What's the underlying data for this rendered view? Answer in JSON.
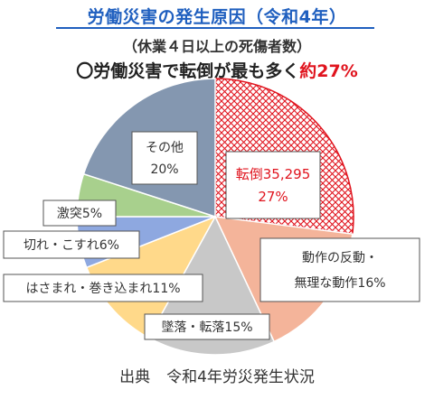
{
  "title": "労働災害の発生原因（令和4年）",
  "subtitle": "（休業４日以上の死傷者数）",
  "headline": {
    "prefix": "〇労働災害で転倒が最も多く",
    "highlight": "約27%"
  },
  "source": {
    "label": "出典",
    "text": "令和4年労災発生状況"
  },
  "colors": {
    "tentou": "#e0141e",
    "dousa": "#f4b49a",
    "tsuiraku": "#c8c8c8",
    "hasamare": "#ffd98a",
    "kire": "#8ea8e0",
    "gekitotsu": "#a8d08d",
    "sonota": "#8497b0"
  },
  "chart_data": {
    "type": "pie",
    "start_angle": "12 o'clock, clockwise",
    "slices": [
      {
        "name": "転倒",
        "value": 27,
        "label": "転倒35,295",
        "pct_label": "27%",
        "count": 35295,
        "color": "#e0141e",
        "pattern": "crosshatch"
      },
      {
        "name": "動作の反動・無理な動作",
        "value": 16,
        "label": "動作の反動・",
        "label2": "無理な動作16%",
        "color": "#f4b49a"
      },
      {
        "name": "墜落・転落",
        "value": 15,
        "label": "墜落・転落15%",
        "color": "#c8c8c8"
      },
      {
        "name": "はさまれ・巻き込まれ",
        "value": 11,
        "label": "はさまれ・巻き込まれ11%",
        "color": "#ffd98a"
      },
      {
        "name": "切れ・こすれ",
        "value": 6,
        "label": "切れ・こすれ6%",
        "color": "#8ea8e0"
      },
      {
        "name": "激突",
        "value": 5,
        "label": "激突5%",
        "color": "#a8d08d"
      },
      {
        "name": "その他",
        "value": 20,
        "label": "その他",
        "pct_label": "20%",
        "color": "#8497b0"
      }
    ]
  }
}
